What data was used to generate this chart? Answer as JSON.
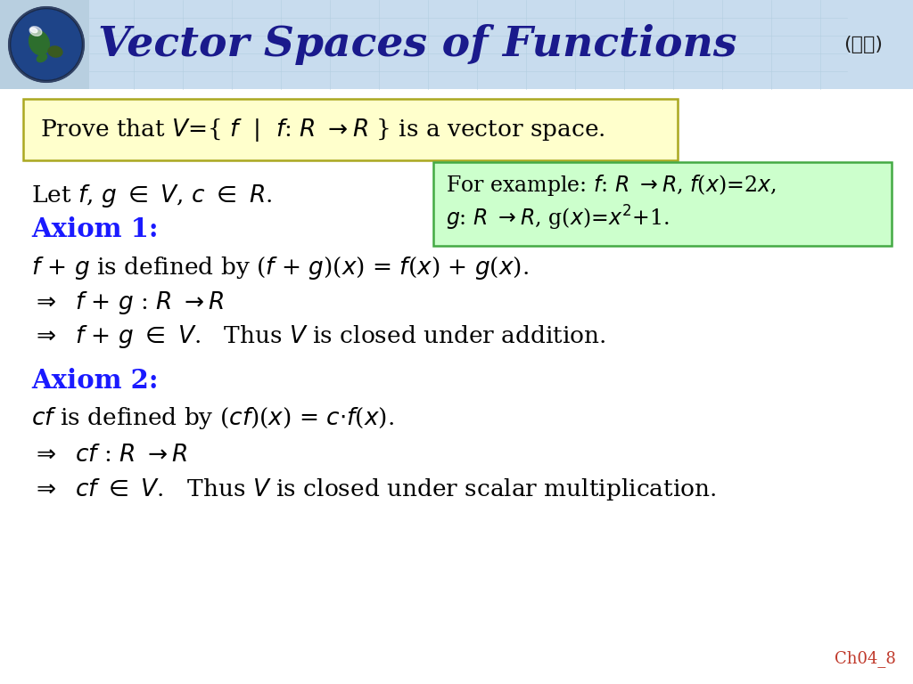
{
  "title": "Vector Spaces of Functions",
  "title_color": "#1a1a8c",
  "title_fontsize": 34,
  "skip_text": "(跳過)",
  "skip_fontsize": 16,
  "bg_color": "#ffffff",
  "header_bg_left": "#aec8e0",
  "header_bg_right": "#c8ddf0",
  "axiom_color": "#1a1aff",
  "body_color": "#000000",
  "slide_number": "Ch04_8",
  "slide_number_color": "#c0392b",
  "slide_number_fontsize": 13,
  "prove_box_facecolor": "#ffffcc",
  "prove_box_edgecolor": "#aaa820",
  "green_box_facecolor": "#ccffcc",
  "green_box_edgecolor": "#44aa44",
  "content_fontsize": 19,
  "axiom_fontsize": 21,
  "prove_fontsize": 19,
  "example_fontsize": 17
}
